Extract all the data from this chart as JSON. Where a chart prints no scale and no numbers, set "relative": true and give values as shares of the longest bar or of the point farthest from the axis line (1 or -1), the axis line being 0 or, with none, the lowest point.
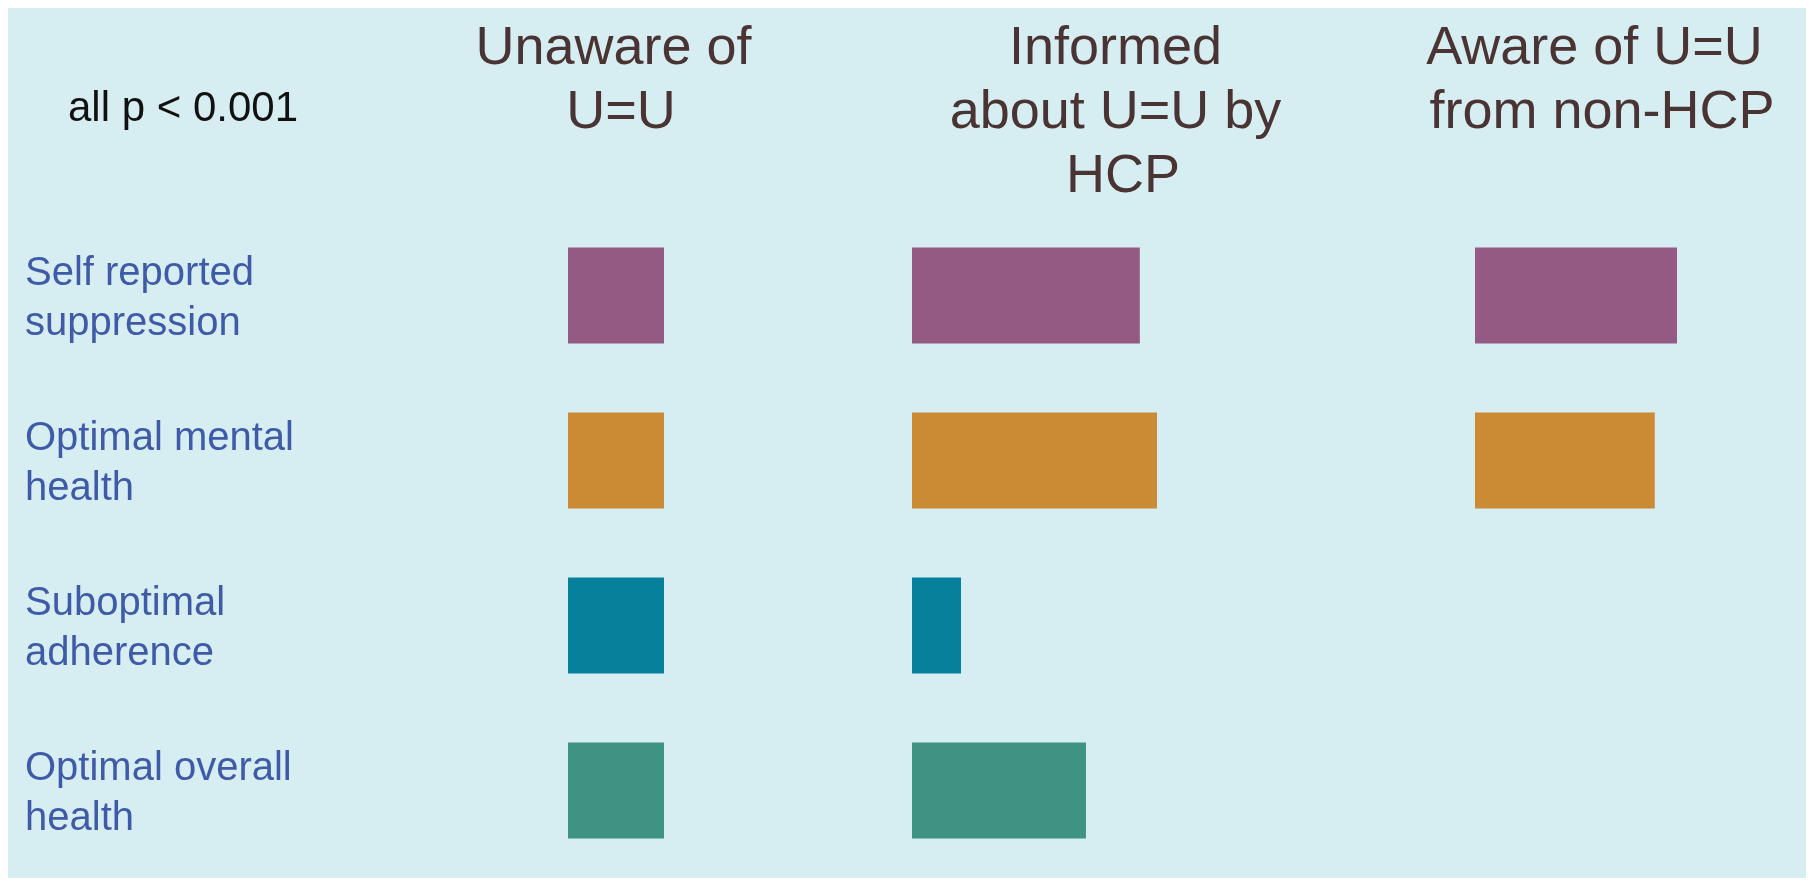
{
  "chart_data": [
    {
      "type": "bar",
      "orientation": "horizontal",
      "relative": true,
      "tick_labels": "y",
      "annotations": [
        "all p < 0.001"
      ],
      "categories": [
        "Self reported suppression",
        "Optimal mental health",
        "Suboptimal adherence",
        "Optimal overall health"
      ],
      "series": [
        {
          "name": "Unaware of U=U",
          "colors": [
            "#955a83",
            "#cb8b35",
            "#07819b",
            "#3f9383"
          ],
          "values": [
            1,
            1,
            1,
            1
          ]
        }
      ]
    },
    {
      "type": "bar",
      "orientation": "horizontal",
      "relative": true,
      "tick_labels": false,
      "categories": [
        "Self reported suppression",
        "Optimal mental health",
        "Suboptimal adherence",
        "Optimal overall health"
      ],
      "series": [
        {
          "name": "Informed about U=U by HCP",
          "colors": [
            "#955a83",
            "#cb8b35",
            "#07819b",
            "#3f9383"
          ],
          "values": [
            0.93,
            1,
            0.2,
            0.71
          ]
        }
      ]
    },
    {
      "type": "bar",
      "orientation": "horizontal",
      "relative": true,
      "tick_labels": false,
      "categories": [
        "Self reported suppression",
        "Optimal mental health",
        "Suboptimal adherence",
        "Optimal overall health"
      ],
      "series": [
        {
          "name": "Aware of U=U from non-HCP",
          "colors": [
            "#955a83",
            "#cb8b35",
            "#07819b",
            "#3f9383"
          ],
          "values": [
            1,
            0.89,
            null,
            null
          ]
        }
      ]
    }
  ]
}
